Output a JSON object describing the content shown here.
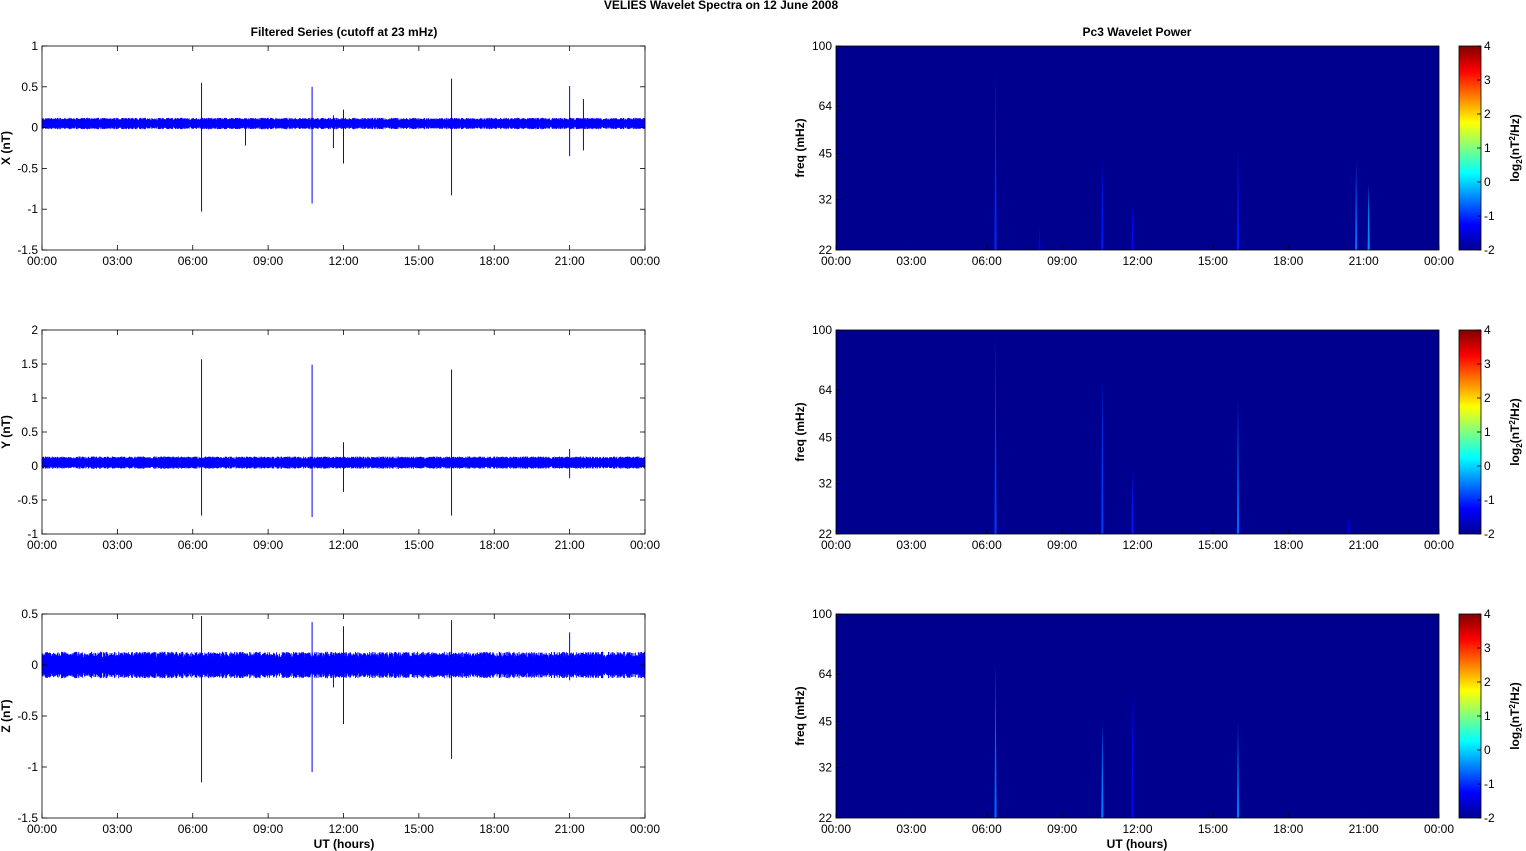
{
  "figure": {
    "title": "VELIES Wavelet Spectra on 12 June      2008",
    "left_title": "Filtered Series (cutoff at 23 mHz)",
    "right_title": "Pc3 Wavelet Power",
    "xlabel": "UT (hours)",
    "x_ticks": [
      "00:00",
      "03:00",
      "06:00",
      "09:00",
      "12:00",
      "15:00",
      "18:00",
      "21:00",
      "00:00"
    ],
    "freq_ylabel": "freq (mHz)",
    "freq_ticks": [
      "100",
      "64",
      "45",
      "32",
      "22"
    ],
    "colorbar_label": "log2(nT2/Hz)",
    "colorbar_ticks": [
      "4",
      "3",
      "2",
      "1",
      "0",
      "-1",
      "-2"
    ]
  },
  "chart_data": [
    {
      "type": "line",
      "panel": "X",
      "ylabel": "X (nT)",
      "ylim": [
        -1.5,
        1
      ],
      "yticks": [
        "1",
        "0.5",
        "0",
        "-0.5",
        "-1",
        "-1.5"
      ],
      "x_unit": "hours",
      "xlim": [
        0,
        24
      ],
      "color": "#0000ff",
      "baseline": 0.05,
      "noise_amplitude": 0.07,
      "spikes": [
        {
          "x": 6.35,
          "max": 0.55,
          "min": -1.03
        },
        {
          "x": 8.1,
          "max": 0.1,
          "min": -0.22
        },
        {
          "x": 10.75,
          "max": 0.5,
          "min": -0.93
        },
        {
          "x": 11.6,
          "max": 0.15,
          "min": -0.25
        },
        {
          "x": 12.0,
          "max": 0.22,
          "min": -0.44
        },
        {
          "x": 16.3,
          "max": 0.6,
          "min": -0.83
        },
        {
          "x": 21.0,
          "max": 0.51,
          "min": -0.35
        },
        {
          "x": 21.55,
          "max": 0.35,
          "min": -0.28
        }
      ]
    },
    {
      "type": "line",
      "panel": "Y",
      "ylabel": "Y (nT)",
      "ylim": [
        -1,
        2
      ],
      "yticks": [
        "2",
        "1.5",
        "1",
        "0.5",
        "0",
        "-0.5",
        "-1"
      ],
      "x_unit": "hours",
      "xlim": [
        0,
        24
      ],
      "color": "#0000ff",
      "baseline": 0.05,
      "noise_amplitude": 0.09,
      "spikes": [
        {
          "x": 6.35,
          "max": 1.57,
          "min": -0.73
        },
        {
          "x": 10.75,
          "max": 1.49,
          "min": -0.75
        },
        {
          "x": 12.0,
          "max": 0.35,
          "min": -0.38
        },
        {
          "x": 16.3,
          "max": 1.42,
          "min": -0.73
        },
        {
          "x": 21.0,
          "max": 0.25,
          "min": -0.18
        }
      ]
    },
    {
      "type": "line",
      "panel": "Z",
      "ylabel": "Z (nT)",
      "ylim": [
        -1.5,
        0.5
      ],
      "yticks": [
        "0.5",
        "0",
        "-0.5",
        "-1",
        "-1.5"
      ],
      "x_unit": "hours",
      "xlim": [
        0,
        24
      ],
      "color": "#0000ff",
      "baseline": 0.0,
      "noise_amplitude": 0.13,
      "spikes": [
        {
          "x": 6.35,
          "max": 0.48,
          "min": -1.15
        },
        {
          "x": 10.75,
          "max": 0.42,
          "min": -1.05
        },
        {
          "x": 11.6,
          "max": 0.12,
          "min": -0.22
        },
        {
          "x": 12.0,
          "max": 0.38,
          "min": -0.58
        },
        {
          "x": 16.3,
          "max": 0.44,
          "min": -0.92
        },
        {
          "x": 21.0,
          "max": 0.32,
          "min": -0.15
        }
      ]
    },
    {
      "type": "heatmap",
      "panel": "X",
      "ylabel": "freq (mHz)",
      "y_scale": "log",
      "ylim": [
        22,
        100
      ],
      "xlim": [
        0,
        24
      ],
      "clim": [
        -2,
        4
      ],
      "background": "#00008f",
      "streaks": [
        {
          "t": 6.35,
          "top": 85,
          "value": -1.0
        },
        {
          "t": 8.1,
          "top": 26,
          "value": -1.3
        },
        {
          "t": 10.6,
          "top": 43,
          "value": -1.1
        },
        {
          "t": 11.8,
          "top": 31,
          "value": -1.2
        },
        {
          "t": 16.0,
          "top": 47,
          "value": -1.1
        },
        {
          "t": 20.7,
          "top": 43,
          "value": -0.6
        },
        {
          "t": 21.2,
          "top": 36,
          "value": -0.4
        }
      ]
    },
    {
      "type": "heatmap",
      "panel": "Y",
      "ylabel": "freq (mHz)",
      "y_scale": "log",
      "ylim": [
        22,
        100
      ],
      "xlim": [
        0,
        24
      ],
      "clim": [
        -2,
        4
      ],
      "background": "#00008f",
      "streaks": [
        {
          "t": 6.35,
          "top": 98,
          "value": -0.9
        },
        {
          "t": 10.6,
          "top": 70,
          "value": -0.9
        },
        {
          "t": 11.8,
          "top": 36,
          "value": -1.1
        },
        {
          "t": 16.0,
          "top": 60,
          "value": -0.6
        },
        {
          "t": 20.4,
          "top": 25,
          "value": -1.4
        }
      ]
    },
    {
      "type": "heatmap",
      "panel": "Z",
      "ylabel": "freq (mHz)",
      "y_scale": "log",
      "ylim": [
        22,
        100
      ],
      "xlim": [
        0,
        24
      ],
      "clim": [
        -2,
        4
      ],
      "background": "#00008f",
      "streaks": [
        {
          "t": 6.35,
          "top": 70,
          "value": -0.6
        },
        {
          "t": 10.6,
          "top": 45,
          "value": -0.5
        },
        {
          "t": 11.8,
          "top": 58,
          "value": -1.2
        },
        {
          "t": 16.0,
          "top": 45,
          "value": -0.5
        }
      ]
    }
  ]
}
